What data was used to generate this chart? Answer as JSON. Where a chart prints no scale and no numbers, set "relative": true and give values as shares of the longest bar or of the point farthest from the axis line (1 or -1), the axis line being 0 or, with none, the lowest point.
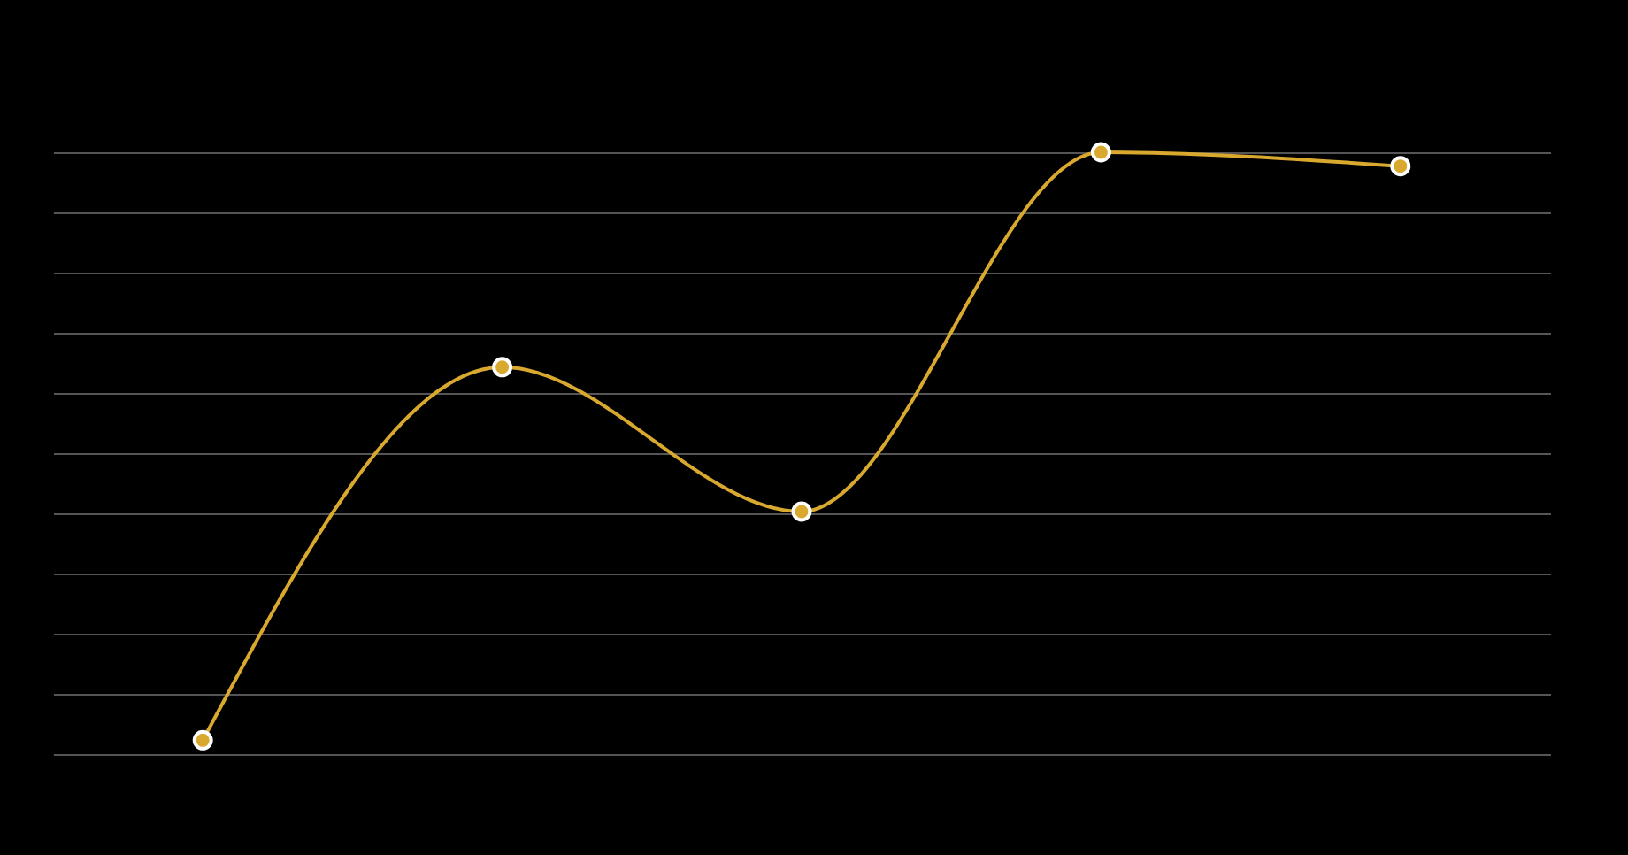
{
  "chart_data": {
    "type": "line",
    "relative": true,
    "categories": [
      null,
      null,
      null,
      null,
      null
    ],
    "series": [
      {
        "color": "#d9a82e",
        "values": [
          0.023,
          0.643,
          0.403,
          1,
          0.977
        ]
      }
    ],
    "marker": "circle",
    "grid": "y"
  }
}
